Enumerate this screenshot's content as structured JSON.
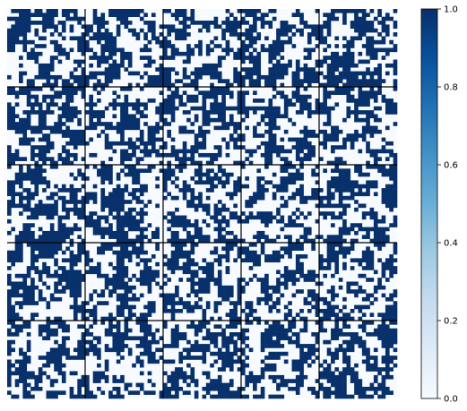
{
  "chart_data": {
    "type": "heatmap",
    "title": "",
    "xlabel": "",
    "ylabel": "",
    "grid": {
      "rows": 5,
      "cols": 5,
      "cells_per_tile": 20
    },
    "value_range": [
      0.0,
      1.0
    ],
    "values": "binary (0 or 1) random pixel patterns in each of the 25 tiles",
    "colormap": {
      "name": "Blues",
      "low": "#f7fbff",
      "high": "#08306b"
    },
    "colorbar": {
      "ticks": [
        0.0,
        0.2,
        0.4,
        0.6,
        0.8,
        1.0
      ],
      "tick_labels": [
        "0.0",
        "0.2",
        "0.4",
        "0.6",
        "0.8",
        "1.0"
      ]
    },
    "separator_color": "#000000",
    "background_color": "#ffffff"
  }
}
